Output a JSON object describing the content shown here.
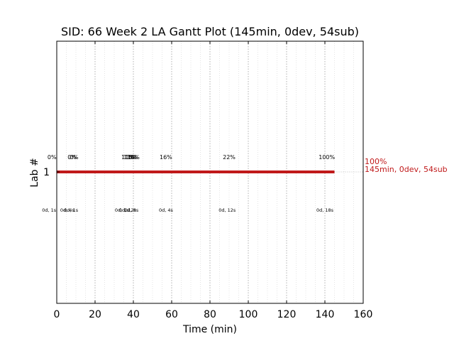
{
  "chart_data": {
    "type": "gantt",
    "title": "SID: 66 Week 2 LA Gantt Plot (145min, 0dev, 54sub)",
    "xlabel": "Time (min)",
    "ylabel": "Lab #",
    "xlim": [
      0,
      160
    ],
    "xticks": [
      "0",
      "20",
      "40",
      "60",
      "80",
      "100",
      "120",
      "140",
      "160"
    ],
    "xtick_values": [
      0,
      20,
      40,
      60,
      80,
      100,
      120,
      140,
      160
    ],
    "grid": "vertical dotted",
    "bar_color": "#c0191a",
    "bars": [
      {
        "lab": "1",
        "start": 0,
        "end": 145
      }
    ],
    "progress_labels": [
      {
        "x": -2.5,
        "text": "0%"
      },
      {
        "x": 8,
        "text": "0%"
      },
      {
        "x": 9,
        "text": "0%"
      },
      {
        "x": 37,
        "text": "11%"
      },
      {
        "x": 38,
        "text": "13%"
      },
      {
        "x": 39,
        "text": "15%"
      },
      {
        "x": 40,
        "text": "16%"
      },
      {
        "x": 57,
        "text": "16%"
      },
      {
        "x": 90,
        "text": "22%"
      },
      {
        "x": 141,
        "text": "100%"
      }
    ],
    "duration_labels": [
      {
        "x": -4,
        "text": "0d, 1s"
      },
      {
        "x": 5.5,
        "text": "0d, 4s"
      },
      {
        "x": 7.5,
        "text": "0d, 1s"
      },
      {
        "x": 34,
        "text": "0d, 1s"
      },
      {
        "x": 37,
        "text": "0d, 12s"
      },
      {
        "x": 39,
        "text": "0d, 8s"
      },
      {
        "x": 57,
        "text": "0d, 4s"
      },
      {
        "x": 89,
        "text": "0d, 12s"
      },
      {
        "x": 140,
        "text": "0d, 18s"
      }
    ],
    "end_annotation": {
      "line1": "100%",
      "line2": "145min, 0dev, 54sub"
    }
  }
}
